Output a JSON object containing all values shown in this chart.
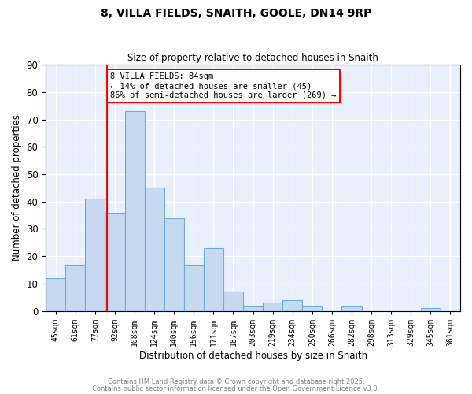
{
  "title": "8, VILLA FIELDS, SNAITH, GOOLE, DN14 9RP",
  "subtitle": "Size of property relative to detached houses in Snaith",
  "xlabel": "Distribution of detached houses by size in Snaith",
  "ylabel": "Number of detached properties",
  "bar_color": "#c8d9ef",
  "bar_edgecolor": "#6aaed6",
  "background_color": "#e8f1fb",
  "categories": [
    "45sqm",
    "61sqm",
    "77sqm",
    "92sqm",
    "108sqm",
    "124sqm",
    "140sqm",
    "156sqm",
    "171sqm",
    "187sqm",
    "203sqm",
    "219sqm",
    "234sqm",
    "250sqm",
    "266sqm",
    "282sqm",
    "298sqm",
    "313sqm",
    "329sqm",
    "345sqm",
    "361sqm"
  ],
  "values": [
    12,
    17,
    41,
    36,
    73,
    45,
    34,
    17,
    23,
    7,
    2,
    3,
    4,
    2,
    0,
    2,
    0,
    0,
    0,
    1,
    0
  ],
  "ylim": [
    0,
    90
  ],
  "yticks": [
    0,
    10,
    20,
    30,
    40,
    50,
    60,
    70,
    80,
    90
  ],
  "redline_index": 2.62,
  "annotation_text": "8 VILLA FIELDS: 84sqm\n← 14% of detached houses are smaller (45)\n86% of semi-detached houses are larger (269) →",
  "footnote1": "Contains HM Land Registry data © Crown copyright and database right 2025.",
  "footnote2": "Contains public sector information licensed under the Open Government Licence v3.0."
}
